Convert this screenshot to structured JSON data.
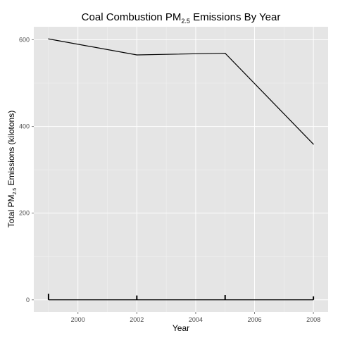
{
  "chart_data": {
    "type": "line",
    "title": {
      "prefix": "Coal Combustion PM",
      "subscript": "2.5",
      "suffix": " Emissions By Year"
    },
    "xlabel": "Year",
    "ylabel": {
      "prefix": "Total PM",
      "subscript": "2.5",
      "suffix": " Emissions (kilotons)"
    },
    "xlim": [
      1998.5,
      2008.5
    ],
    "ylim": [
      -28,
      630
    ],
    "x_ticks": [
      2000,
      2002,
      2004,
      2006,
      2008
    ],
    "x_tick_labels": [
      "2000",
      "2002",
      "2004",
      "2006",
      "2008"
    ],
    "y_ticks": [
      0,
      200,
      400,
      600
    ],
    "y_tick_labels": [
      "0",
      "200",
      "400",
      "600"
    ],
    "grid": true,
    "series": [
      {
        "x": [
          1999,
          2002,
          2005,
          2008
        ],
        "values": [
          602,
          565,
          569,
          359
        ],
        "color": "#000000"
      }
    ],
    "baseline": {
      "y": 0,
      "x_range": [
        1999,
        2008
      ],
      "spikes": [
        {
          "x": 1999,
          "height": 14
        },
        {
          "x": 2002,
          "height": 10
        },
        {
          "x": 2005,
          "height": 11
        },
        {
          "x": 2008,
          "height": 8
        }
      ]
    },
    "colors": {
      "panel": "#e5e5e5",
      "grid_major": "#ffffff",
      "grid_minor": "#f2f2f2",
      "line": "#000000"
    }
  }
}
